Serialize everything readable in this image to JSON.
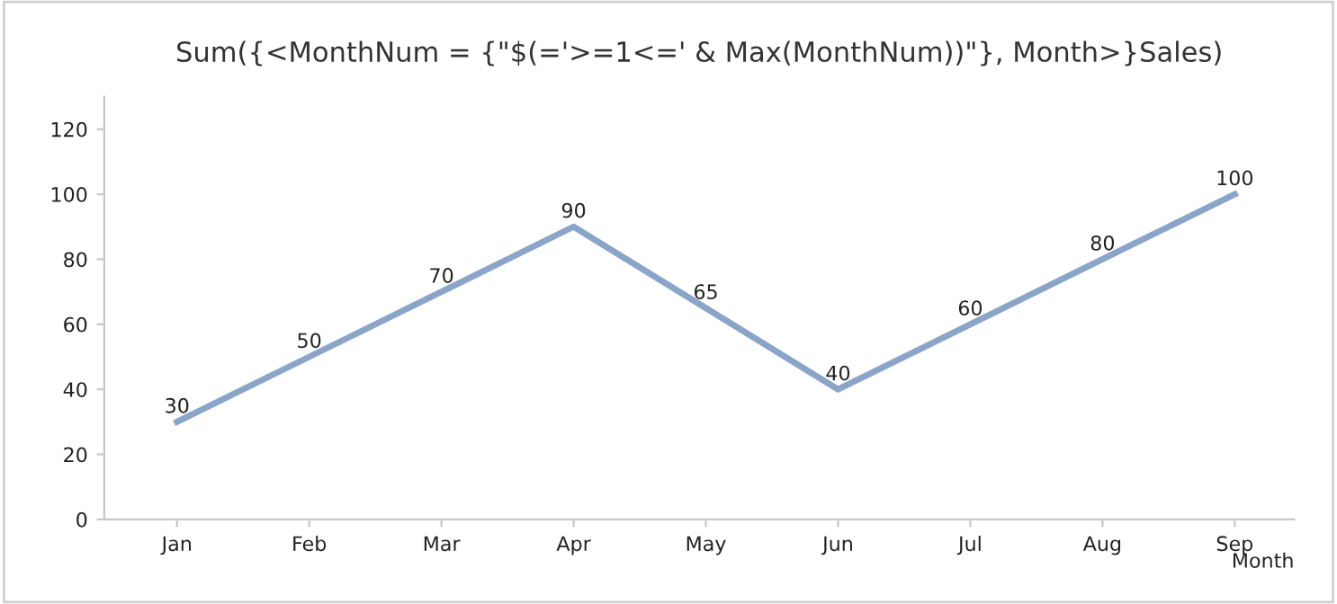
{
  "chart_data": {
    "type": "line",
    "title": "Sum({<MonthNum = {\"$(='>=1<=' & Max(MonthNum))\"}, Month>}Sales)",
    "xlabel": "Month",
    "categories": [
      "Jan",
      "Feb",
      "Mar",
      "Apr",
      "May",
      "Jun",
      "Jul",
      "Aug",
      "Sep"
    ],
    "series": [
      {
        "color": "#8ba5c9",
        "values": [
          30,
          50,
          70,
          90,
          65,
          40,
          60,
          80,
          100
        ]
      }
    ],
    "ylim": [
      0,
      130
    ],
    "yticks": [
      0,
      20,
      40,
      60,
      80,
      100,
      120
    ],
    "grid": false,
    "data_labels": true,
    "marker": "none",
    "line_style": "solid",
    "legend": false
  }
}
